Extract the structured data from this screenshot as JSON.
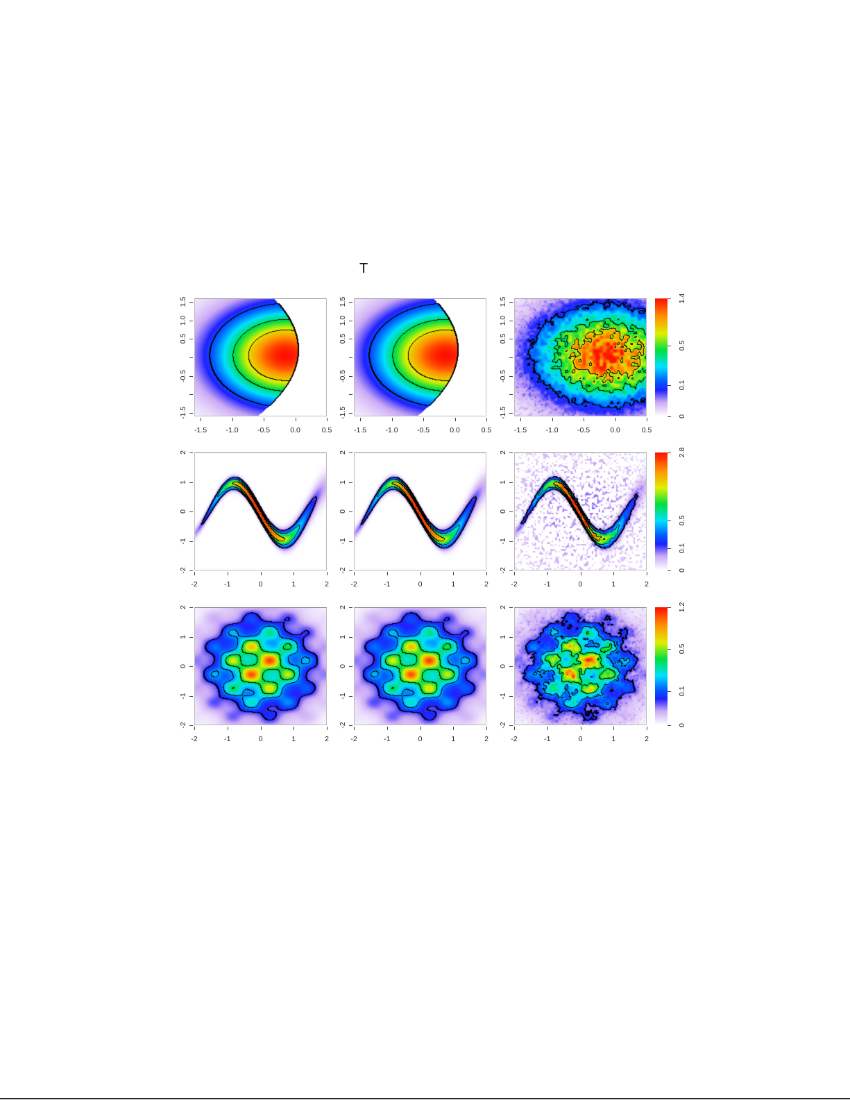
{
  "title": "T",
  "colormap": [
    "#ffffff",
    "#c9a8f5",
    "#2020ff",
    "#0060ff",
    "#00e0ff",
    "#00e040",
    "#e0f000",
    "#ff9000",
    "#ff1000"
  ],
  "chart_data": [
    {
      "type": "heatmap",
      "row": 1,
      "col": 1,
      "surface": "crescent",
      "noisy": false,
      "truncated": true,
      "xlim": [
        -1.6,
        0.5
      ],
      "ylim": [
        -1.6,
        1.6
      ],
      "xticks": [
        {
          "v": -1.5,
          "label": "-1.5"
        },
        {
          "v": -1.0,
          "label": "-1.0"
        },
        {
          "v": -0.5,
          "label": "-0.5"
        },
        {
          "v": 0.0,
          "label": "0.0"
        },
        {
          "v": 0.5,
          "label": "0.5"
        }
      ],
      "yticks": [
        {
          "v": -1.5,
          "label": "-1.5"
        },
        {
          "v": -1.0,
          "label": ""
        },
        {
          "v": -0.5,
          "label": "-0.5"
        },
        {
          "v": 0.0,
          "label": ""
        },
        {
          "v": 0.5,
          "label": "0.5"
        },
        {
          "v": 1.0,
          "label": "1.0"
        },
        {
          "v": 1.5,
          "label": "1.5"
        }
      ],
      "zmax": 1.4,
      "contours": [
        0.1,
        0.4,
        0.75
      ]
    },
    {
      "type": "heatmap",
      "row": 1,
      "col": 2,
      "surface": "crescent",
      "noisy": false,
      "truncated": true,
      "xlim": [
        -1.6,
        0.5
      ],
      "ylim": [
        -1.6,
        1.6
      ],
      "xticks": [
        {
          "v": -1.5,
          "label": "-1.5"
        },
        {
          "v": -1.0,
          "label": "-1.0"
        },
        {
          "v": -0.5,
          "label": "-0.5"
        },
        {
          "v": 0.0,
          "label": "0.0"
        },
        {
          "v": 0.5,
          "label": "0.5"
        }
      ],
      "yticks": [
        {
          "v": -1.5,
          "label": "-1.5"
        },
        {
          "v": -1.0,
          "label": ""
        },
        {
          "v": -0.5,
          "label": "-0.5"
        },
        {
          "v": 0.0,
          "label": ""
        },
        {
          "v": 0.5,
          "label": "0.5"
        },
        {
          "v": 1.0,
          "label": "1.0"
        },
        {
          "v": 1.5,
          "label": "1.5"
        }
      ],
      "zmax": 1.4,
      "contours": [
        0.1,
        0.4,
        0.75
      ]
    },
    {
      "type": "heatmap",
      "row": 1,
      "col": 3,
      "surface": "crescent",
      "noisy": true,
      "truncated": false,
      "xlim": [
        -1.6,
        0.5
      ],
      "ylim": [
        -1.6,
        1.6
      ],
      "xticks": [
        {
          "v": -1.5,
          "label": "-1.5"
        },
        {
          "v": -1.0,
          "label": "-1.0"
        },
        {
          "v": -0.5,
          "label": "-0.5"
        },
        {
          "v": 0.0,
          "label": "0.0"
        },
        {
          "v": 0.5,
          "label": "0.5"
        }
      ],
      "yticks": [
        {
          "v": -1.5,
          "label": "-1.5"
        },
        {
          "v": -1.0,
          "label": ""
        },
        {
          "v": -0.5,
          "label": "-0.5"
        },
        {
          "v": 0.0,
          "label": ""
        },
        {
          "v": 0.5,
          "label": "0.5"
        },
        {
          "v": 1.0,
          "label": "1.0"
        },
        {
          "v": 1.5,
          "label": "1.5"
        }
      ],
      "zmax": 1.4,
      "contours": [
        0.1,
        0.4,
        0.75
      ],
      "colorbar": {
        "max": 1.4,
        "ticks": [
          {
            "v": 0,
            "label": "0"
          },
          {
            "v": 0.1,
            "label": "0.1"
          },
          {
            "v": 0.5,
            "label": "0.5"
          },
          {
            "v": 1.4,
            "label": "1.4"
          }
        ]
      }
    },
    {
      "type": "heatmap",
      "row": 2,
      "col": 1,
      "surface": "banana",
      "noisy": false,
      "truncated": false,
      "xlim": [
        -2,
        2
      ],
      "ylim": [
        -2,
        2
      ],
      "xticks": [
        {
          "v": -2,
          "label": "-2"
        },
        {
          "v": -1,
          "label": "-1"
        },
        {
          "v": 0,
          "label": "0"
        },
        {
          "v": 1,
          "label": "1"
        },
        {
          "v": 2,
          "label": "2"
        }
      ],
      "yticks": [
        {
          "v": -2,
          "label": "-2"
        },
        {
          "v": -1,
          "label": "-1"
        },
        {
          "v": 0,
          "label": "0"
        },
        {
          "v": 1,
          "label": "1"
        },
        {
          "v": 2,
          "label": "2"
        }
      ],
      "zmax": 2.8,
      "contours": [
        0.1,
        0.5,
        1.4
      ]
    },
    {
      "type": "heatmap",
      "row": 2,
      "col": 2,
      "surface": "banana",
      "noisy": false,
      "truncated": false,
      "xlim": [
        -2,
        2
      ],
      "ylim": [
        -2,
        2
      ],
      "xticks": [
        {
          "v": -2,
          "label": "-2"
        },
        {
          "v": -1,
          "label": "-1"
        },
        {
          "v": 0,
          "label": "0"
        },
        {
          "v": 1,
          "label": "1"
        },
        {
          "v": 2,
          "label": "2"
        }
      ],
      "yticks": [
        {
          "v": -2,
          "label": "-2"
        },
        {
          "v": -1,
          "label": "-1"
        },
        {
          "v": 0,
          "label": "0"
        },
        {
          "v": 1,
          "label": "1"
        },
        {
          "v": 2,
          "label": "2"
        }
      ],
      "zmax": 2.8,
      "contours": [
        0.1,
        0.5,
        1.4
      ]
    },
    {
      "type": "heatmap",
      "row": 2,
      "col": 3,
      "surface": "banana",
      "noisy": true,
      "truncated": false,
      "xlim": [
        -2,
        2
      ],
      "ylim": [
        -2,
        2
      ],
      "xticks": [
        {
          "v": -2,
          "label": "-2"
        },
        {
          "v": -1,
          "label": "-1"
        },
        {
          "v": 0,
          "label": "0"
        },
        {
          "v": 1,
          "label": "1"
        },
        {
          "v": 2,
          "label": "2"
        }
      ],
      "yticks": [
        {
          "v": -2,
          "label": "-2"
        },
        {
          "v": -1,
          "label": "-1"
        },
        {
          "v": 0,
          "label": "0"
        },
        {
          "v": 1,
          "label": "1"
        },
        {
          "v": 2,
          "label": "2"
        }
      ],
      "zmax": 2.8,
      "contours": [
        0.1,
        0.5,
        1.4
      ],
      "colorbar": {
        "max": 2.8,
        "ticks": [
          {
            "v": 0,
            "label": "0"
          },
          {
            "v": 0.1,
            "label": "0.1"
          },
          {
            "v": 0.5,
            "label": "0.5"
          },
          {
            "v": 2.8,
            "label": "2.8"
          }
        ]
      }
    },
    {
      "type": "heatmap",
      "row": 3,
      "col": 1,
      "surface": "grid",
      "noisy": false,
      "truncated": false,
      "xlim": [
        -2,
        2
      ],
      "ylim": [
        -2,
        2
      ],
      "xticks": [
        {
          "v": -2,
          "label": "-2"
        },
        {
          "v": -1,
          "label": "-1"
        },
        {
          "v": 0,
          "label": "0"
        },
        {
          "v": 1,
          "label": "1"
        },
        {
          "v": 2,
          "label": "2"
        }
      ],
      "yticks": [
        {
          "v": -2,
          "label": "-2"
        },
        {
          "v": -1,
          "label": "-1"
        },
        {
          "v": 0,
          "label": "0"
        },
        {
          "v": 1,
          "label": "1"
        },
        {
          "v": 2,
          "label": "2"
        }
      ],
      "zmax": 1.2,
      "contours": [
        0.05,
        0.15,
        0.35
      ]
    },
    {
      "type": "heatmap",
      "row": 3,
      "col": 2,
      "surface": "grid",
      "noisy": false,
      "truncated": false,
      "xlim": [
        -2,
        2
      ],
      "ylim": [
        -2,
        2
      ],
      "xticks": [
        {
          "v": -2,
          "label": "-2"
        },
        {
          "v": -1,
          "label": "-1"
        },
        {
          "v": 0,
          "label": "0"
        },
        {
          "v": 1,
          "label": "1"
        },
        {
          "v": 2,
          "label": "2"
        }
      ],
      "yticks": [
        {
          "v": -2,
          "label": "-2"
        },
        {
          "v": -1,
          "label": "-1"
        },
        {
          "v": 0,
          "label": "0"
        },
        {
          "v": 1,
          "label": "1"
        },
        {
          "v": 2,
          "label": "2"
        }
      ],
      "zmax": 1.2,
      "contours": [
        0.05,
        0.15,
        0.35
      ]
    },
    {
      "type": "heatmap",
      "row": 3,
      "col": 3,
      "surface": "grid",
      "noisy": true,
      "truncated": false,
      "xlim": [
        -2,
        2
      ],
      "ylim": [
        -2,
        2
      ],
      "xticks": [
        {
          "v": -2,
          "label": "-2"
        },
        {
          "v": -1,
          "label": "-1"
        },
        {
          "v": 0,
          "label": "0"
        },
        {
          "v": 1,
          "label": "1"
        },
        {
          "v": 2,
          "label": "2"
        }
      ],
      "yticks": [
        {
          "v": -2,
          "label": "-2"
        },
        {
          "v": -1,
          "label": "-1"
        },
        {
          "v": 0,
          "label": "0"
        },
        {
          "v": 1,
          "label": "1"
        },
        {
          "v": 2,
          "label": "2"
        }
      ],
      "zmax": 1.2,
      "contours": [
        0.05,
        0.15,
        0.35
      ],
      "colorbar": {
        "max": 1.2,
        "ticks": [
          {
            "v": 0,
            "label": "0"
          },
          {
            "v": 0.1,
            "label": "0.1"
          },
          {
            "v": 0.5,
            "label": "0.5"
          },
          {
            "v": 1.2,
            "label": "1.2"
          }
        ]
      }
    }
  ]
}
